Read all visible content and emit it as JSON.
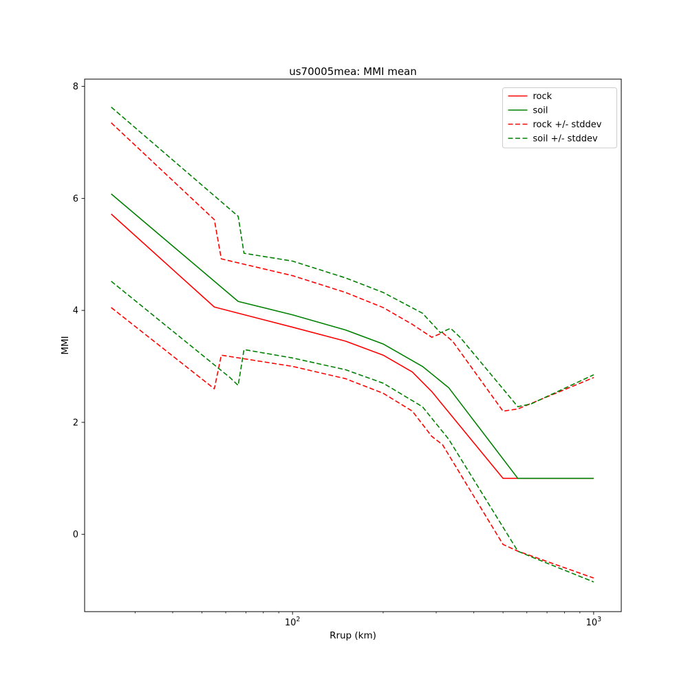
{
  "window_title": "us70005mea: MMI mean",
  "chart_data": {
    "type": "line",
    "title": "us70005mea: MMI mean",
    "xlabel": "Rrup (km)",
    "ylabel": "MMI",
    "x_scale": "log",
    "grid": false,
    "legend_position": "upper right",
    "xlim": [
      20.4,
      1235
    ],
    "ylim": [
      -1.38,
      8.13
    ],
    "yticks": [
      0,
      2,
      4,
      6,
      8
    ],
    "xticks": [
      {
        "value": 100,
        "base": "10",
        "exp": "2"
      },
      {
        "value": 1000,
        "base": "10",
        "exp": "3"
      }
    ],
    "minor_xticks": [
      30,
      40,
      50,
      60,
      70,
      80,
      90,
      200,
      300,
      400,
      500,
      600,
      700,
      800,
      900
    ],
    "colors": {
      "rock": "#ff0000",
      "soil": "#008000"
    },
    "legend_entries": [
      "rock",
      "soil",
      "rock +/- stddev",
      "soil +/- stddev"
    ],
    "series": [
      {
        "name": "rock",
        "color": "#ff0000",
        "dash": false,
        "in_legend": true,
        "points": [
          [
            25,
            5.72
          ],
          [
            55,
            4.06
          ],
          [
            100,
            3.7
          ],
          [
            150,
            3.45
          ],
          [
            200,
            3.2
          ],
          [
            250,
            2.9
          ],
          [
            290,
            2.55
          ],
          [
            500,
            1.0
          ],
          [
            1000,
            1.0
          ]
        ]
      },
      {
        "name": "soil",
        "color": "#008000",
        "dash": false,
        "in_legend": true,
        "points": [
          [
            25,
            6.08
          ],
          [
            66,
            4.16
          ],
          [
            100,
            3.92
          ],
          [
            150,
            3.65
          ],
          [
            200,
            3.4
          ],
          [
            270,
            3.0
          ],
          [
            330,
            2.62
          ],
          [
            560,
            1.0
          ],
          [
            1000,
            1.0
          ]
        ]
      },
      {
        "name": "rock +/- stddev",
        "color": "#ff0000",
        "dash": true,
        "in_legend": true,
        "points": [
          [
            25,
            7.35
          ],
          [
            55,
            5.62
          ],
          [
            58,
            4.92
          ],
          [
            100,
            4.62
          ],
          [
            150,
            4.32
          ],
          [
            200,
            4.05
          ],
          [
            250,
            3.75
          ],
          [
            290,
            3.52
          ],
          [
            315,
            3.6
          ],
          [
            340,
            3.45
          ],
          [
            500,
            2.2
          ],
          [
            560,
            2.24
          ],
          [
            1000,
            2.8
          ]
        ]
      },
      {
        "name": "soil +/- stddev",
        "color": "#008000",
        "dash": true,
        "in_legend": true,
        "points": [
          [
            25,
            7.63
          ],
          [
            66,
            5.68
          ],
          [
            69,
            5.02
          ],
          [
            100,
            4.88
          ],
          [
            150,
            4.58
          ],
          [
            200,
            4.32
          ],
          [
            270,
            3.95
          ],
          [
            310,
            3.6
          ],
          [
            335,
            3.68
          ],
          [
            360,
            3.52
          ],
          [
            560,
            2.28
          ],
          [
            620,
            2.33
          ],
          [
            1000,
            2.85
          ]
        ]
      },
      {
        "name": "rock - stddev",
        "color": "#ff0000",
        "dash": true,
        "in_legend": false,
        "points": [
          [
            25,
            4.05
          ],
          [
            55,
            2.6
          ],
          [
            58,
            3.2
          ],
          [
            100,
            3.0
          ],
          [
            150,
            2.78
          ],
          [
            200,
            2.52
          ],
          [
            250,
            2.2
          ],
          [
            290,
            1.75
          ],
          [
            315,
            1.6
          ],
          [
            500,
            -0.18
          ],
          [
            560,
            -0.3
          ],
          [
            1000,
            -0.78
          ]
        ]
      },
      {
        "name": "soil - stddev",
        "color": "#008000",
        "dash": true,
        "in_legend": false,
        "points": [
          [
            25,
            4.52
          ],
          [
            62,
            2.8
          ],
          [
            66,
            2.66
          ],
          [
            69,
            3.3
          ],
          [
            100,
            3.15
          ],
          [
            150,
            2.94
          ],
          [
            200,
            2.7
          ],
          [
            270,
            2.28
          ],
          [
            330,
            1.7
          ],
          [
            560,
            -0.3
          ],
          [
            620,
            -0.4
          ],
          [
            1000,
            -0.85
          ]
        ]
      }
    ]
  }
}
